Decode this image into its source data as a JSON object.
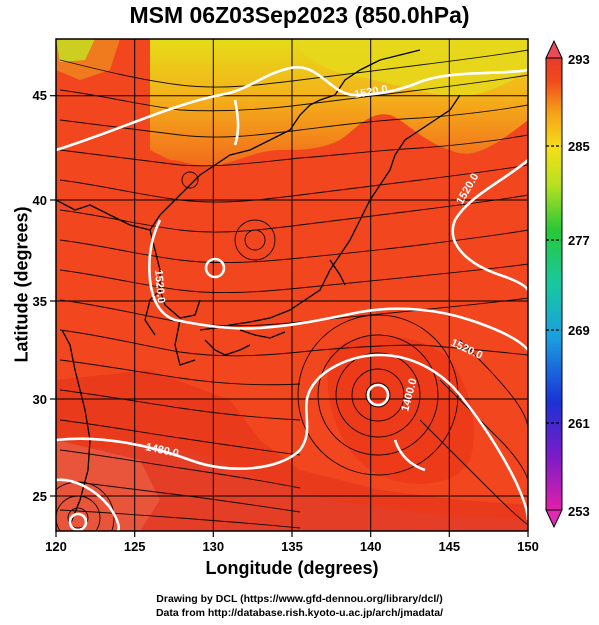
{
  "title": "MSM 06Z03Sep2023 (850.0hPa)",
  "xlabel": "Longitude (degrees)",
  "ylabel": "Latitude  (degrees)",
  "x_ticks": [
    "120",
    "125",
    "130",
    "135",
    "140",
    "145",
    "150"
  ],
  "y_ticks": [
    "45",
    "40",
    "35",
    "30",
    "25"
  ],
  "colorbar_ticks": [
    "293",
    "285",
    "277",
    "269",
    "261",
    "253"
  ],
  "contour_labels": [
    "1520.0",
    "1520.0",
    "1520.0",
    "1520.0",
    "1480.0",
    "1400.0"
  ],
  "credits": {
    "line1": "Drawing by DCL (https://www.gfd-dennou.org/library/dcl/)",
    "line2": "Data from http://database.rish.kyoto-u.ac.jp/arch/jmadata/"
  },
  "map_data": {
    "lon_range": [
      120,
      150
    ],
    "lat_range": [
      23,
      48
    ],
    "colorbar_range": [
      253,
      293
    ],
    "colors": {
      "field_main": "#f2401e",
      "field_hot": "#e8321a",
      "field_warm_north": "#f7c21a",
      "field_yellow_green": "#d8e020",
      "contour": "#ffffff",
      "vectors": "#000000"
    }
  }
}
